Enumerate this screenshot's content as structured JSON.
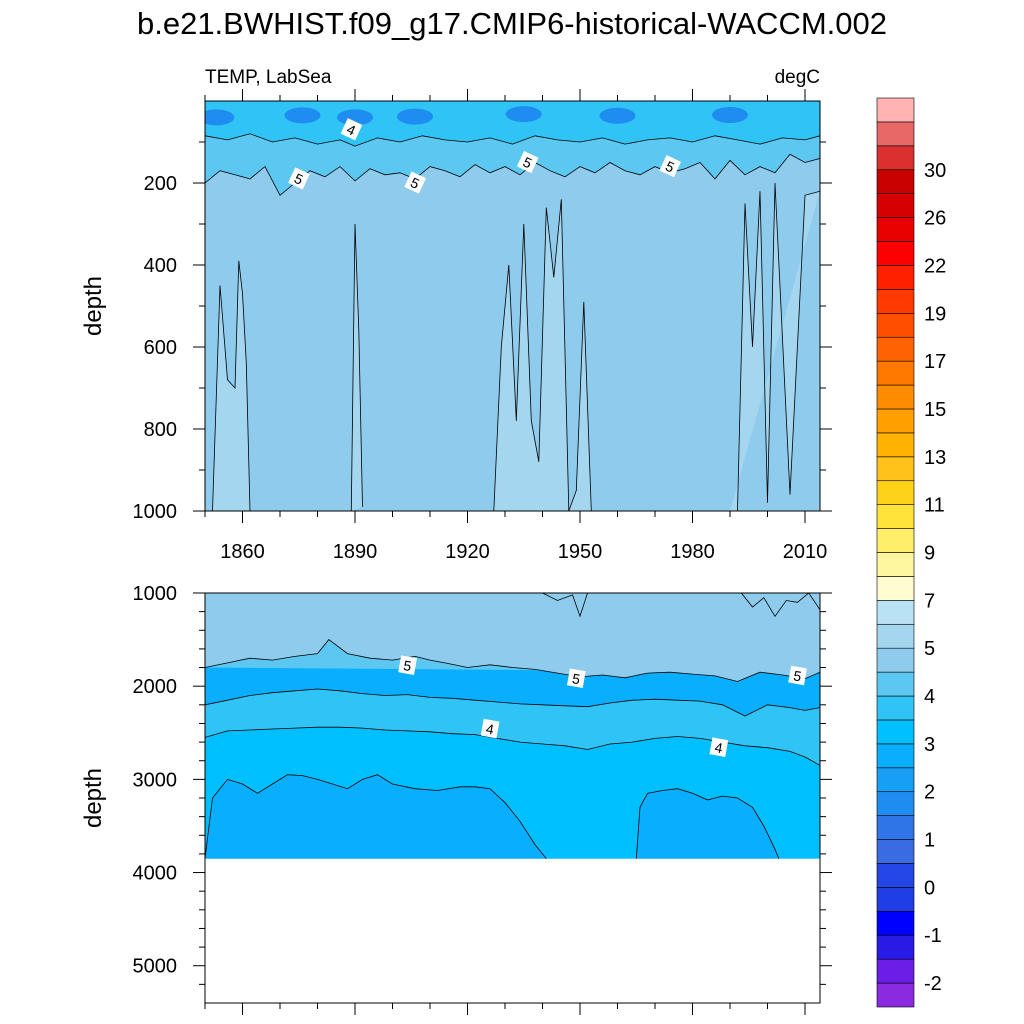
{
  "figure": {
    "title": "b.e21.BWHIST.f09_g17.CMIP6-historical-WACCM.002",
    "left_label": "TEMP, LabSea",
    "right_label": "degC"
  },
  "chart_data": [
    {
      "type": "heatmap",
      "panel": "upper",
      "variable": "TEMP",
      "region": "LabSea",
      "units": "degC",
      "ylabel": "depth",
      "xlim": [
        1850,
        2014
      ],
      "ylim": [
        0,
        1000
      ],
      "y_inverted": true,
      "xticks": [
        1860,
        1890,
        1920,
        1950,
        1980,
        2010
      ],
      "yticks": [
        200,
        400,
        600,
        800,
        1000
      ],
      "contour_labels": [
        {
          "text": "4",
          "x": 1889,
          "y": 70
        },
        {
          "text": "5",
          "x": 1875,
          "y": 190
        },
        {
          "text": "5",
          "x": 1906,
          "y": 200
        },
        {
          "text": "5",
          "x": 1936,
          "y": 150
        },
        {
          "text": "5",
          "x": 1974,
          "y": 160
        }
      ],
      "isolines": [
        {
          "level": 4,
          "x": [
            1850,
            1856,
            1862,
            1868,
            1874,
            1880,
            1886,
            1890,
            1896,
            1902,
            1908,
            1914,
            1920,
            1926,
            1932,
            1938,
            1944,
            1950,
            1956,
            1962,
            1968,
            1974,
            1980,
            1986,
            1992,
            1998,
            2004,
            2010,
            2014
          ],
          "y": [
            85,
            95,
            80,
            100,
            90,
            105,
            95,
            110,
            90,
            100,
            85,
            95,
            100,
            90,
            105,
            85,
            95,
            100,
            90,
            105,
            95,
            90,
            100,
            85,
            95,
            105,
            90,
            95,
            85
          ]
        },
        {
          "level": 5,
          "x": [
            1850,
            1854,
            1858,
            1862,
            1866,
            1870,
            1874,
            1878,
            1882,
            1886,
            1890,
            1894,
            1898,
            1902,
            1906,
            1910,
            1914,
            1918,
            1922,
            1926,
            1930,
            1934,
            1938,
            1942,
            1946,
            1950,
            1954,
            1958,
            1962,
            1966,
            1970,
            1974,
            1978,
            1982,
            1986,
            1990,
            1994,
            1998,
            2002,
            2006,
            2010,
            2014
          ],
          "y": [
            200,
            170,
            180,
            190,
            160,
            230,
            200,
            170,
            185,
            160,
            195,
            165,
            180,
            175,
            190,
            160,
            170,
            185,
            155,
            175,
            160,
            180,
            150,
            170,
            185,
            160,
            175,
            150,
            170,
            180,
            160,
            175,
            165,
            150,
            190,
            145,
            180,
            160,
            175,
            130,
            150,
            140
          ]
        },
        {
          "level": 5.5,
          "x": [
            1852,
            1854,
            1856,
            1858,
            1859,
            1860,
            1861,
            1862
          ],
          "y": [
            1000,
            450,
            680,
            700,
            390,
            470,
            640,
            1000
          ]
        },
        {
          "level": 5.5,
          "x": [
            1889,
            1890,
            1891,
            1892
          ],
          "y": [
            1000,
            300,
            560,
            990
          ]
        },
        {
          "level": 5.5,
          "x": [
            1927,
            1929,
            1931,
            1933,
            1935,
            1937,
            1939,
            1941,
            1943,
            1945,
            1947,
            1949,
            1951,
            1953
          ],
          "y": [
            1000,
            600,
            400,
            780,
            300,
            780,
            880,
            260,
            430,
            240,
            1000,
            950,
            490,
            1000
          ]
        },
        {
          "level": 5.5,
          "x": [
            1990,
            1992,
            1994,
            1996,
            1998,
            2000,
            2002,
            2006,
            2010,
            2014
          ],
          "y": [
            1000,
            1000,
            250,
            600,
            220,
            980,
            200,
            960,
            230,
            220
          ]
        }
      ]
    },
    {
      "type": "heatmap",
      "panel": "lower",
      "variable": "TEMP",
      "region": "LabSea",
      "units": "degC",
      "ylabel": "depth",
      "xlim": [
        1850,
        2014
      ],
      "ylim": [
        1000,
        5400
      ],
      "y_inverted": true,
      "yticks": [
        1000,
        2000,
        3000,
        4000,
        5000
      ],
      "ocean_bottom": 3850,
      "contour_labels": [
        {
          "text": "5",
          "x": 1904,
          "y": 1780
        },
        {
          "text": "5",
          "x": 1949,
          "y": 1920
        },
        {
          "text": "5",
          "x": 2008,
          "y": 1890
        },
        {
          "text": "4",
          "x": 1926,
          "y": 2460
        },
        {
          "text": "4",
          "x": 1987,
          "y": 2660
        }
      ],
      "isolines": [
        {
          "level": 5,
          "x": [
            1850,
            1856,
            1862,
            1868,
            1874,
            1880,
            1883,
            1888,
            1894,
            1900,
            1906,
            1910,
            1914,
            1920,
            1926,
            1932,
            1938,
            1944,
            1950,
            1956,
            1962,
            1968,
            1974,
            1980,
            1986,
            1992,
            1998,
            2004,
            2010,
            2014
          ],
          "y": [
            1800,
            1750,
            1700,
            1720,
            1680,
            1650,
            1500,
            1650,
            1700,
            1720,
            1680,
            1720,
            1750,
            1800,
            1770,
            1800,
            1820,
            1860,
            1900,
            1880,
            1910,
            1860,
            1850,
            1870,
            1890,
            1950,
            1850,
            1880,
            1920,
            1850
          ]
        },
        {
          "level": 4.5,
          "x": [
            1850,
            1856,
            1862,
            1868,
            1874,
            1880,
            1886,
            1892,
            1898,
            1904,
            1910,
            1916,
            1922,
            1928,
            1934,
            1940,
            1946,
            1952,
            1958,
            1964,
            1970,
            1976,
            1982,
            1988,
            1994,
            2000,
            2006,
            2010,
            2014
          ],
          "y": [
            2200,
            2150,
            2100,
            2070,
            2050,
            2030,
            2050,
            2080,
            2100,
            2090,
            2120,
            2130,
            2150,
            2170,
            2190,
            2200,
            2210,
            2220,
            2180,
            2150,
            2140,
            2150,
            2160,
            2200,
            2320,
            2200,
            2230,
            2260,
            2230
          ]
        },
        {
          "level": 4,
          "x": [
            1850,
            1856,
            1862,
            1868,
            1874,
            1880,
            1886,
            1892,
            1898,
            1904,
            1910,
            1916,
            1922,
            1928,
            1934,
            1940,
            1946,
            1952,
            1958,
            1964,
            1970,
            1976,
            1982,
            1988,
            1994,
            2000,
            2006,
            2010,
            2014
          ],
          "y": [
            2550,
            2480,
            2470,
            2460,
            2450,
            2440,
            2440,
            2450,
            2470,
            2480,
            2490,
            2510,
            2520,
            2560,
            2600,
            2620,
            2640,
            2680,
            2620,
            2600,
            2560,
            2540,
            2560,
            2600,
            2640,
            2660,
            2700,
            2760,
            2850
          ]
        },
        {
          "level": 3.5,
          "x": [
            1850,
            1852,
            1856,
            1860,
            1864,
            1868,
            1872,
            1876,
            1880,
            1884,
            1888,
            1892,
            1896,
            1900,
            1906,
            1912,
            1918,
            1922,
            1926,
            1930,
            1934,
            1938,
            1940,
            1941
          ],
          "y": [
            3850,
            3200,
            3000,
            3050,
            3150,
            3050,
            2950,
            2960,
            3000,
            3050,
            3100,
            3000,
            2950,
            3050,
            3100,
            3120,
            3080,
            3080,
            3100,
            3250,
            3450,
            3700,
            3800,
            3850
          ]
        },
        {
          "level": 3.5,
          "x": [
            1965,
            1966,
            1968,
            1972,
            1976,
            1980,
            1984,
            1988,
            1992,
            1996,
            1999,
            2002,
            2003
          ],
          "y": [
            3850,
            3300,
            3150,
            3120,
            3100,
            3150,
            3220,
            3180,
            3200,
            3300,
            3500,
            3750,
            3850
          ]
        }
      ]
    }
  ],
  "colorbar": {
    "labels": [
      "-2",
      "-1",
      "0",
      "1",
      "2",
      "3",
      "4",
      "5",
      "7",
      "9",
      "11",
      "13",
      "15",
      "17",
      "19",
      "22",
      "26",
      "30"
    ],
    "colors": [
      "#8a2be2",
      "#6a1ee6",
      "#2a1ae6",
      "#0000ff",
      "#1f3ee6",
      "#2446e6",
      "#3a6be0",
      "#2f75e8",
      "#1e8cf0",
      "#179ff5",
      "#0aaeff",
      "#00bfff",
      "#2fc4f5",
      "#5cc8f2",
      "#8ecbec",
      "#a4d6f0",
      "#b9e2f4",
      "#fffccf",
      "#fff7a0",
      "#ffee6a",
      "#ffe23a",
      "#ffd21a",
      "#ffc21a",
      "#ffb300",
      "#ffa000",
      "#ff8c00",
      "#ff7800",
      "#ff6200",
      "#ff4e00",
      "#ff3a00",
      "#ff2000",
      "#ff0000",
      "#e80000",
      "#d60000",
      "#c80000",
      "#da3030",
      "#e86868",
      "#ffb3b3"
    ]
  },
  "colors": {
    "upper_bg": "#8ecbec",
    "upper_mid": "#5cc8f2",
    "upper_top": "#2fc4f5",
    "upper_warm_patch": "#a4d6f0",
    "lower_5plus": "#8ecbec",
    "lower_4_5": "#5cc8f2",
    "lower_45_4": "#2fc4f5",
    "lower_4_35": "#00bfff",
    "lower_below_35": "#0aaeff"
  }
}
